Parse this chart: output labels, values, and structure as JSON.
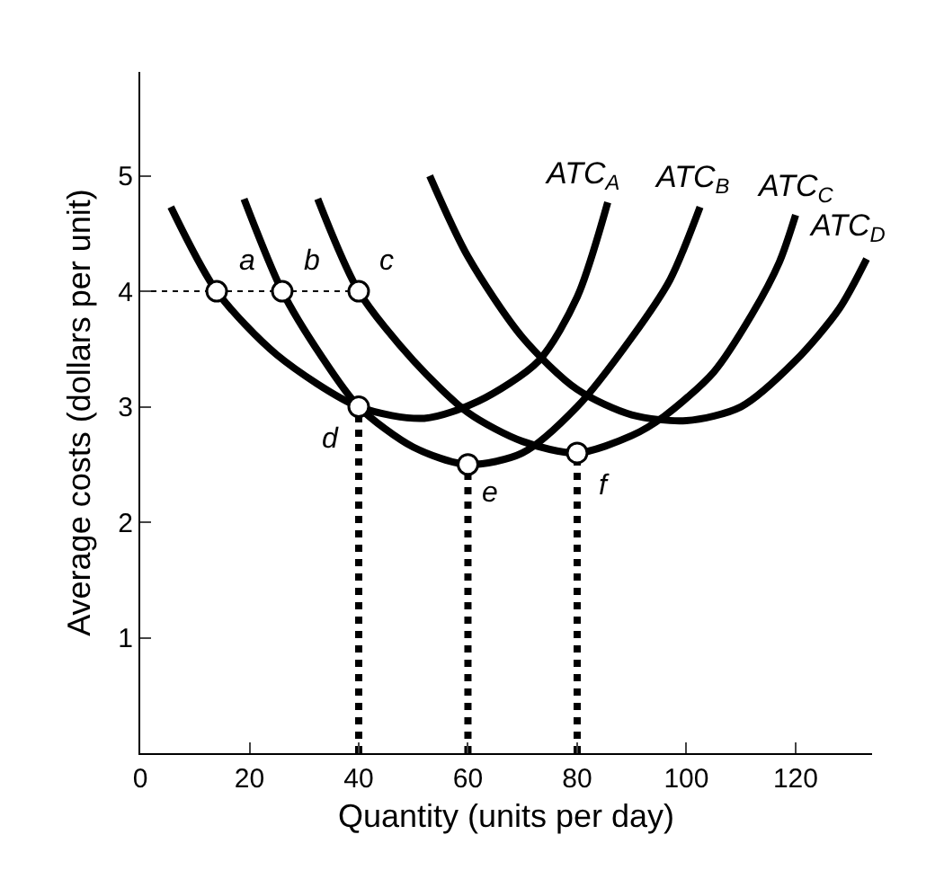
{
  "chart_data": {
    "type": "line",
    "xlabel": "Quantity (units per day)",
    "ylabel": "Average costs (dollars per unit)",
    "xlim": [
      0,
      134
    ],
    "ylim": [
      0,
      5.9
    ],
    "xticks": [
      0,
      20,
      40,
      60,
      80,
      100,
      120
    ],
    "yticks": [
      1,
      2,
      3,
      4,
      5
    ],
    "legend": false,
    "marker": "none",
    "line_style": "solid",
    "series": [
      {
        "name": "ATC$_{A}$",
        "color": "#000000",
        "x": [
          5.6,
          14,
          25,
          40,
          52,
          62,
          73,
          80,
          85.6
        ],
        "values": [
          4.73,
          4.0,
          3.45,
          3.0,
          2.9,
          3.05,
          3.4,
          3.95,
          4.77
        ]
      },
      {
        "name": "ATC$_{B}$",
        "color": "#000000",
        "x": [
          19,
          26,
          33,
          40,
          50,
          60,
          70,
          80,
          90,
          97,
          102.5
        ],
        "values": [
          4.8,
          4.0,
          3.45,
          3.0,
          2.65,
          2.5,
          2.6,
          3.0,
          3.6,
          4.1,
          4.73
        ]
      },
      {
        "name": "ATC$_{C}$",
        "color": "#000000",
        "x": [
          32.5,
          40,
          50,
          60,
          70,
          80,
          90,
          96,
          105,
          112,
          117,
          120
        ],
        "values": [
          4.8,
          4.0,
          3.4,
          2.95,
          2.7,
          2.6,
          2.75,
          2.92,
          3.3,
          3.8,
          4.25,
          4.66
        ]
      },
      {
        "name": "ATC$_{D}$",
        "color": "#000000",
        "x": [
          53,
          60,
          70,
          80,
          90,
          100,
          110,
          120,
          128,
          133
        ],
        "values": [
          5.0,
          4.3,
          3.6,
          3.15,
          2.93,
          2.88,
          3.0,
          3.4,
          3.85,
          4.28
        ]
      },
      {
        "type": "line",
        "color": "#000000",
        "line_style": "dotted",
        "x": [
          0,
          40
        ],
        "values": [
          4,
          4
        ]
      },
      {
        "type": "line",
        "color": "#000000",
        "line_style": "dotted",
        "x": [
          40,
          40
        ],
        "values": [
          0,
          3
        ]
      },
      {
        "type": "line",
        "color": "#000000",
        "line_style": "dotted",
        "x": [
          60,
          60
        ],
        "values": [
          0,
          2.5
        ]
      },
      {
        "type": "line",
        "color": "#000000",
        "line_style": "dotted",
        "x": [
          80,
          80
        ],
        "values": [
          0,
          2.6
        ]
      },
      {
        "type": "scatter",
        "color": "#000000",
        "marker": "circle",
        "x": [
          14,
          26,
          40,
          40,
          60,
          80
        ],
        "values": [
          4,
          4,
          4,
          3,
          2.5,
          2.6
        ]
      }
    ],
    "annotations": [
      {
        "text": "a",
        "x": 14,
        "y": 4
      },
      {
        "text": "b",
        "x": 26,
        "y": 4
      },
      {
        "text": "c",
        "x": 40,
        "y": 4
      },
      {
        "text": "d",
        "x": 40,
        "y": 3
      },
      {
        "text": "e",
        "x": 60,
        "y": 2.5
      },
      {
        "text": "f",
        "x": 80,
        "y": 2.6
      }
    ]
  }
}
